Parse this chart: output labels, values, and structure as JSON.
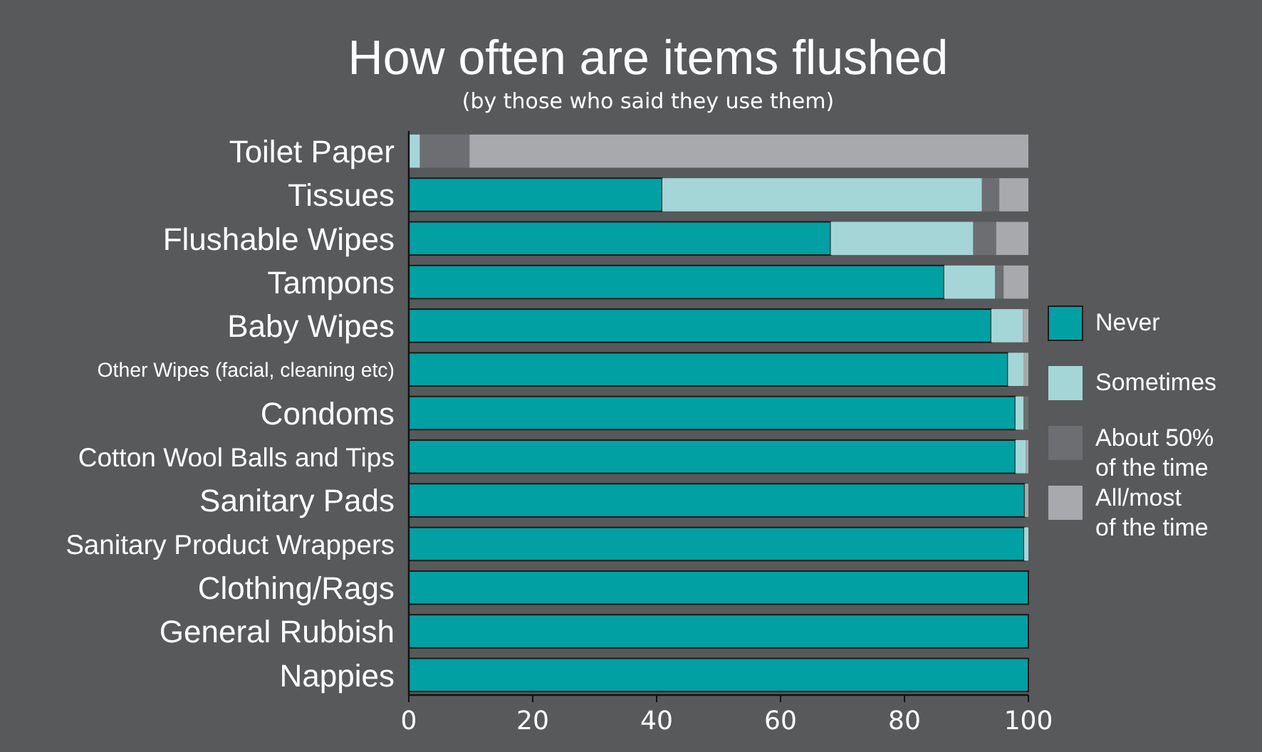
{
  "chart_data": {
    "type": "bar",
    "orientation": "horizontal",
    "stacked": true,
    "title": "How often are items flushed",
    "subtitle": "(by those who said they use them)",
    "categories": [
      "Toilet Paper",
      "Tissues",
      "Flushable Wipes",
      "Tampons",
      "Baby Wipes",
      "Other Wipes (facial, cleaning etc)",
      "Condoms",
      "Cotton Wool Balls and Tips",
      "Sanitary Pads",
      "Sanitary Product Wrappers",
      "Clothing/Rags",
      "General Rubbish",
      "Nappies"
    ],
    "series": [
      {
        "name": "Never",
        "color": "#00a0a3",
        "values": [
          0,
          40.9,
          68.1,
          86.4,
          94.0,
          96.7,
          97.9,
          97.9,
          99.4,
          99.3,
          100,
          100,
          100
        ]
      },
      {
        "name": "Sometimes",
        "color": "#a5d6d7",
        "values": [
          1.8,
          51.6,
          23.0,
          8.2,
          5.1,
          2.5,
          1.3,
          1.7,
          0,
          0.7,
          0,
          0,
          0
        ]
      },
      {
        "name": "About 50% of the time",
        "color": "#6d6e71",
        "values": [
          8.0,
          2.8,
          3.7,
          1.4,
          0,
          0,
          0.8,
          0,
          0,
          0,
          0,
          0,
          0
        ]
      },
      {
        "name": "All/most of the time",
        "color": "#a7a9ac",
        "values": [
          90.2,
          4.7,
          5.2,
          4.0,
          0.9,
          0.8,
          0,
          0.4,
          0.6,
          0,
          0,
          0,
          0
        ]
      }
    ],
    "xlim": [
      0,
      100
    ],
    "xticks": [
      0,
      20,
      40,
      60,
      80,
      100
    ],
    "grid": false,
    "legend": "right"
  }
}
